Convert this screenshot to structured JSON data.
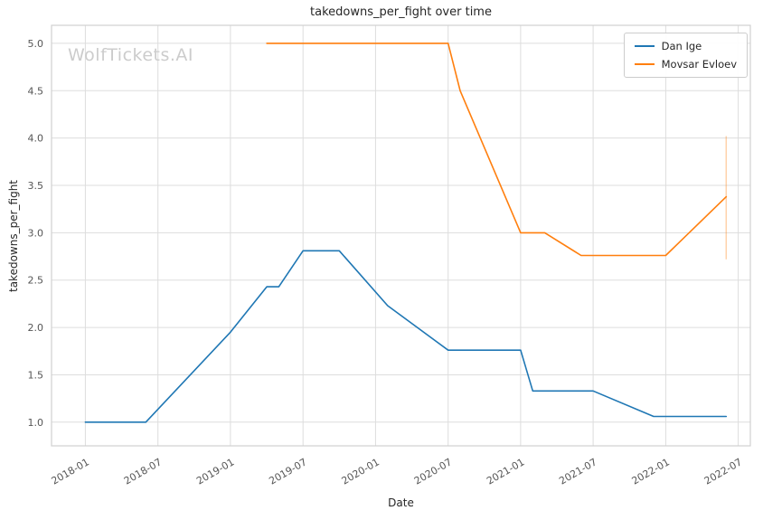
{
  "watermark": "WolfTickets.AI",
  "chart_data": {
    "type": "line",
    "title": "takedowns_per_fight over time",
    "xlabel": "Date",
    "ylabel": "takedowns_per_fight",
    "grid": true,
    "legend_position": "upper right",
    "x_tick_labels": [
      "2018-01",
      "2018-07",
      "2019-01",
      "2019-07",
      "2020-01",
      "2020-07",
      "2021-01",
      "2021-07",
      "2022-01",
      "2022-07"
    ],
    "y_tick_labels": [
      "1.0",
      "1.5",
      "2.0",
      "2.5",
      "3.0",
      "3.5",
      "4.0",
      "4.5",
      "5.0"
    ],
    "xlim_months_from_2018_01": [
      -2.8,
      55.0
    ],
    "ylim": [
      0.75,
      5.19
    ],
    "series": [
      {
        "name": "Dan Ige",
        "color": "#1f77b4",
        "points": [
          [
            "2018-01",
            1.0
          ],
          [
            "2018-06",
            1.0
          ],
          [
            "2019-01",
            1.95
          ],
          [
            "2019-04",
            2.43
          ],
          [
            "2019-05",
            2.43
          ],
          [
            "2019-07",
            2.81
          ],
          [
            "2019-10",
            2.81
          ],
          [
            "2020-02",
            2.23
          ],
          [
            "2020-07",
            1.76
          ],
          [
            "2021-01",
            1.76
          ],
          [
            "2021-02",
            1.33
          ],
          [
            "2021-07",
            1.33
          ],
          [
            "2021-12",
            1.06
          ],
          [
            "2022-06",
            1.06
          ]
        ]
      },
      {
        "name": "Movsar Evloev",
        "color": "#ff7f0e",
        "points": [
          [
            "2019-04",
            5.0
          ],
          [
            "2020-07",
            5.0
          ],
          [
            "2020-08",
            4.5
          ],
          [
            "2021-01",
            3.0
          ],
          [
            "2021-03",
            3.0
          ],
          [
            "2021-06",
            2.76
          ],
          [
            "2022-01",
            2.76
          ],
          [
            "2022-06",
            3.38
          ]
        ]
      }
    ],
    "annotations": [
      {
        "type": "vline_segment",
        "date": "2022-06",
        "y_from": 2.72,
        "y_to": 4.02,
        "color": "#ff7f0e",
        "opacity": 0.35
      }
    ]
  }
}
